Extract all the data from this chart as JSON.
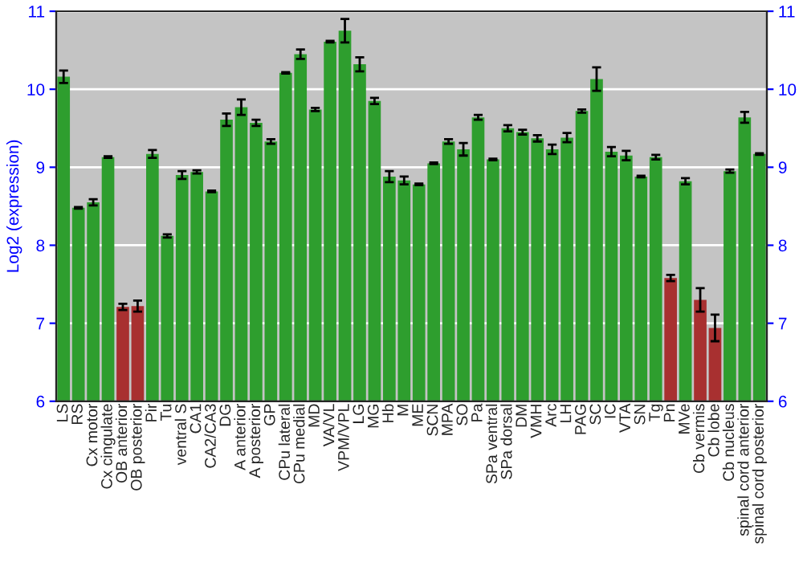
{
  "chart_data": {
    "type": "bar",
    "ylabel": "Log2 (expression)",
    "categories": [
      "LS",
      "RS",
      "Cx motor",
      "Cx cingulate",
      "OB anterior",
      "OB posterior",
      "Pir",
      "Tu",
      "ventral S",
      "CA1",
      "CA2/CA3",
      "DG",
      "A anterior",
      "A posterior",
      "GP",
      "CPu lateral",
      "CPu medial",
      "MD",
      "VA/VL",
      "VPM/VPL",
      "LG",
      "MG",
      "Hb",
      "M",
      "ME",
      "SCN",
      "MPA",
      "SO",
      "Pa",
      "SPa ventral",
      "SPa dorsal",
      "DM",
      "VMH",
      "Arc",
      "LH",
      "PAG",
      "SC",
      "IC",
      "VTA",
      "SN",
      "Tg",
      "Pn",
      "MVe",
      "Cb vermis",
      "Cb lobe",
      "Cb nucleus",
      "spinal cord anterior",
      "spinal cord posterior"
    ],
    "values": [
      10.16,
      8.48,
      8.55,
      9.13,
      7.21,
      7.22,
      9.17,
      8.12,
      8.9,
      8.94,
      8.69,
      9.61,
      9.77,
      9.57,
      9.33,
      10.21,
      10.45,
      9.74,
      10.61,
      10.75,
      10.32,
      9.85,
      8.88,
      8.83,
      8.78,
      9.05,
      9.33,
      9.23,
      9.64,
      9.1,
      9.5,
      9.45,
      9.37,
      9.23,
      9.38,
      9.72,
      10.13,
      9.2,
      9.15,
      8.88,
      9.13,
      7.58,
      8.82,
      7.3,
      6.94,
      8.95,
      9.64,
      9.17
    ],
    "errors": [
      0.08,
      0.01,
      0.04,
      0.01,
      0.04,
      0.07,
      0.05,
      0.02,
      0.05,
      0.02,
      0.01,
      0.08,
      0.1,
      0.04,
      0.03,
      0.01,
      0.06,
      0.02,
      0.01,
      0.15,
      0.09,
      0.04,
      0.07,
      0.05,
      0.01,
      0.01,
      0.03,
      0.08,
      0.03,
      0.01,
      0.04,
      0.03,
      0.04,
      0.06,
      0.06,
      0.02,
      0.15,
      0.06,
      0.06,
      0.01,
      0.03,
      0.04,
      0.04,
      0.15,
      0.17,
      0.02,
      0.07,
      0.01
    ],
    "colors": [
      "#2e9e2e",
      "#2e9e2e",
      "#2e9e2e",
      "#2e9e2e",
      "#a83030",
      "#a83030",
      "#2e9e2e",
      "#2e9e2e",
      "#2e9e2e",
      "#2e9e2e",
      "#2e9e2e",
      "#2e9e2e",
      "#2e9e2e",
      "#2e9e2e",
      "#2e9e2e",
      "#2e9e2e",
      "#2e9e2e",
      "#2e9e2e",
      "#2e9e2e",
      "#2e9e2e",
      "#2e9e2e",
      "#2e9e2e",
      "#2e9e2e",
      "#2e9e2e",
      "#2e9e2e",
      "#2e9e2e",
      "#2e9e2e",
      "#2e9e2e",
      "#2e9e2e",
      "#2e9e2e",
      "#2e9e2e",
      "#2e9e2e",
      "#2e9e2e",
      "#2e9e2e",
      "#2e9e2e",
      "#2e9e2e",
      "#2e9e2e",
      "#2e9e2e",
      "#2e9e2e",
      "#2e9e2e",
      "#2e9e2e",
      "#a83030",
      "#2e9e2e",
      "#a83030",
      "#a83030",
      "#2e9e2e",
      "#2e9e2e",
      "#2e9e2e"
    ],
    "ylim": [
      6,
      11
    ],
    "yticks": [
      6,
      7,
      8,
      9,
      10,
      11
    ],
    "y2lim": [
      6,
      11
    ],
    "y2ticks": [
      6,
      7,
      8,
      9,
      10,
      11
    ],
    "grid": "y",
    "legend": false
  }
}
